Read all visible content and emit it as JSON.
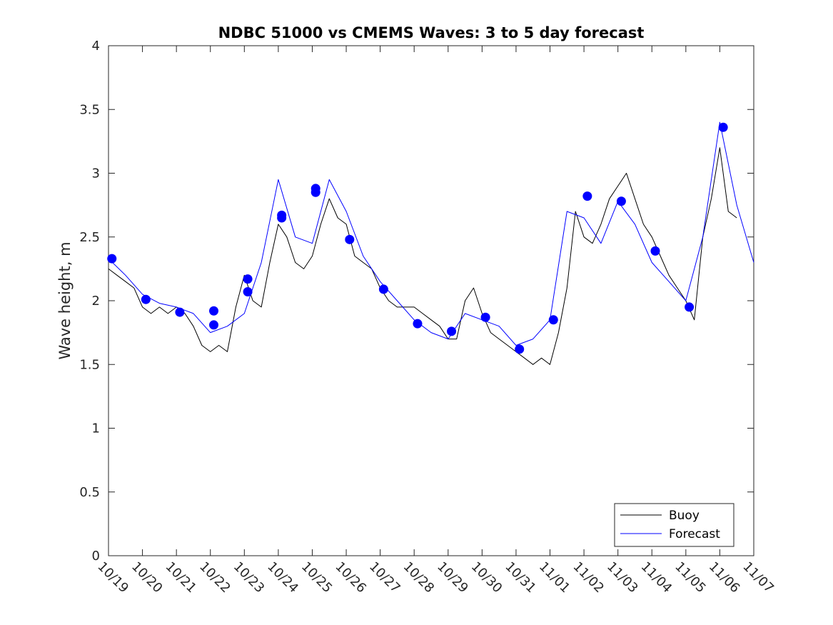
{
  "chart_data": {
    "type": "line",
    "title": "NDBC 51000 vs CMEMS Waves: 3 to 5 day forecast",
    "xlabel": "",
    "ylabel": "Wave height, m",
    "ylim": [
      0,
      4
    ],
    "xlim": [
      0,
      19
    ],
    "yticks": [
      "0",
      "0.5",
      "1",
      "1.5",
      "2",
      "2.5",
      "3",
      "3.5",
      "4"
    ],
    "xtick_labels": [
      "10/19",
      "10/20",
      "10/21",
      "10/22",
      "10/23",
      "10/24",
      "10/25",
      "10/26",
      "10/27",
      "10/28",
      "10/29",
      "10/30",
      "10/31",
      "11/01",
      "11/02",
      "11/03",
      "11/04",
      "11/05",
      "11/06",
      "11/07"
    ],
    "legend": {
      "location": "bottom-right",
      "entries": [
        "Buoy",
        "Forecast"
      ]
    },
    "colors": {
      "buoy": "#000000",
      "forecast": "#0000ff",
      "markers": "#0000ff"
    },
    "series": [
      {
        "name": "Buoy",
        "x": [
          0.0,
          0.25,
          0.5,
          0.75,
          1.0,
          1.25,
          1.5,
          1.75,
          2.0,
          2.25,
          2.5,
          2.75,
          3.0,
          3.25,
          3.5,
          3.75,
          4.0,
          4.25,
          4.5,
          4.75,
          5.0,
          5.25,
          5.5,
          5.75,
          6.0,
          6.25,
          6.5,
          6.75,
          7.0,
          7.25,
          7.5,
          7.75,
          8.0,
          8.25,
          8.5,
          8.75,
          9.0,
          9.25,
          9.5,
          9.75,
          10.0,
          10.25,
          10.5,
          10.75,
          11.0,
          11.25,
          11.5,
          11.75,
          12.0,
          12.25,
          12.5,
          12.75,
          13.0,
          13.25,
          13.5,
          13.75,
          14.0,
          14.25,
          14.5,
          14.75,
          15.0,
          15.25,
          15.5,
          15.75,
          16.0,
          16.25,
          16.5,
          16.75,
          17.0,
          17.25,
          17.5,
          17.75,
          18.0,
          18.25,
          18.5
        ],
        "values": [
          2.25,
          2.2,
          2.15,
          2.1,
          1.95,
          1.9,
          1.95,
          1.9,
          1.95,
          1.9,
          1.8,
          1.65,
          1.6,
          1.65,
          1.6,
          1.95,
          2.2,
          2.0,
          1.95,
          2.3,
          2.6,
          2.5,
          2.3,
          2.25,
          2.35,
          2.6,
          2.8,
          2.65,
          2.6,
          2.35,
          2.3,
          2.25,
          2.1,
          2.0,
          1.95,
          1.95,
          1.95,
          1.9,
          1.85,
          1.8,
          1.7,
          1.7,
          2.0,
          2.1,
          1.9,
          1.75,
          1.7,
          1.65,
          1.6,
          1.55,
          1.5,
          1.55,
          1.5,
          1.75,
          2.1,
          2.7,
          2.5,
          2.45,
          2.6,
          2.8,
          2.9,
          3.0,
          2.8,
          2.6,
          2.5,
          2.35,
          2.2,
          2.1,
          2.0,
          1.85,
          2.5,
          2.8,
          3.2,
          2.7,
          2.65
        ]
      },
      {
        "name": "Forecast",
        "x": [
          0.0,
          0.5,
          1.0,
          1.5,
          2.0,
          2.5,
          3.0,
          3.5,
          4.0,
          4.5,
          5.0,
          5.5,
          6.0,
          6.5,
          7.0,
          7.5,
          8.0,
          8.5,
          9.0,
          9.5,
          10.0,
          10.5,
          11.0,
          11.5,
          12.0,
          12.5,
          13.0,
          13.5,
          14.0,
          14.5,
          15.0,
          15.5,
          16.0,
          16.5,
          17.0,
          17.5,
          18.0,
          18.5,
          19.0
        ],
        "values": [
          2.33,
          2.2,
          2.05,
          1.98,
          1.95,
          1.9,
          1.75,
          1.8,
          1.9,
          2.3,
          2.95,
          2.5,
          2.45,
          2.95,
          2.7,
          2.35,
          2.15,
          2.0,
          1.85,
          1.75,
          1.7,
          1.9,
          1.85,
          1.8,
          1.65,
          1.7,
          1.85,
          2.7,
          2.65,
          2.45,
          2.78,
          2.6,
          2.3,
          2.15,
          2.0,
          2.5,
          3.4,
          2.75,
          2.3
        ]
      }
    ],
    "forecast_markers": {
      "x": [
        0.1,
        1.1,
        2.1,
        3.1,
        3.1,
        4.1,
        4.1,
        5.1,
        5.1,
        6.1,
        6.1,
        7.1,
        8.1,
        9.1,
        10.1,
        11.1,
        12.1,
        13.1,
        14.1,
        15.1,
        16.1,
        17.1,
        18.1
      ],
      "values": [
        2.33,
        2.01,
        1.91,
        1.92,
        1.81,
        2.17,
        2.07,
        2.67,
        2.65,
        2.88,
        2.85,
        2.48,
        2.09,
        1.82,
        1.76,
        1.87,
        1.62,
        1.85,
        2.82,
        2.78,
        2.39,
        1.95,
        3.36
      ]
    }
  }
}
